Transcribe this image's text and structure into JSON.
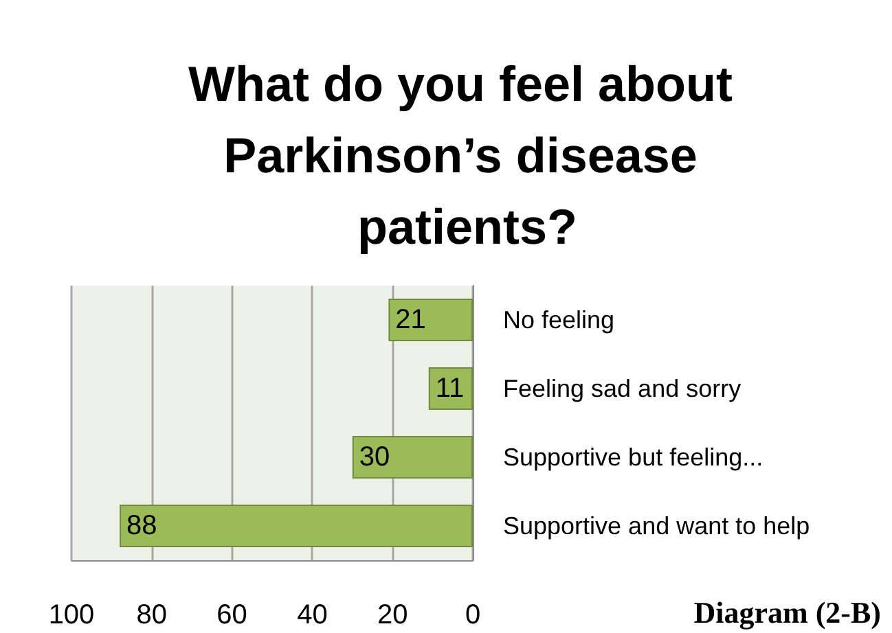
{
  "chart_data": {
    "type": "bar",
    "orientation": "horizontal",
    "title": "What do you feel about Parkinson’s disease patients?",
    "categories": [
      "No feeling",
      "Feeling sad and sorry",
      "Supportive but feeling...",
      "Supportive and want to help"
    ],
    "values": [
      21,
      11,
      30,
      88
    ],
    "color": "#9bbb59",
    "xlim": [
      100,
      0
    ],
    "xticks": [
      100,
      80,
      60,
      40,
      20,
      0
    ],
    "grid": "x",
    "data_labels": true,
    "annotations": [
      "Diagram (2-B)"
    ]
  }
}
